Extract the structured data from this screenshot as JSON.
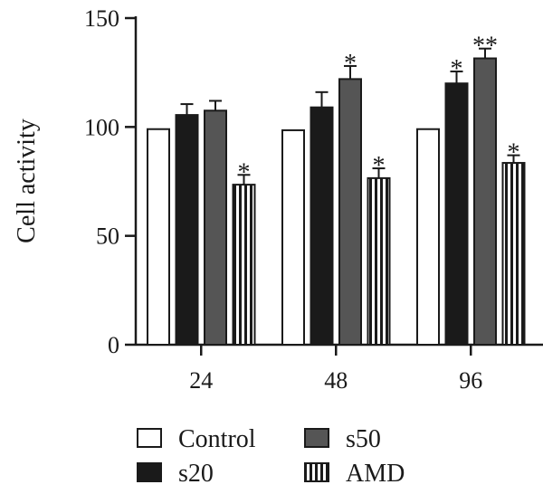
{
  "chart_data": {
    "type": "bar",
    "title": "",
    "xlabel": "",
    "ylabel": "Cell activity",
    "ylim": [
      0,
      150
    ],
    "yticks": [
      "0",
      "50",
      "100",
      "150"
    ],
    "categories": [
      "24",
      "48",
      "96"
    ],
    "series": [
      {
        "name": "Control",
        "values": [
          99,
          98.5,
          99
        ],
        "errors": [
          0,
          0,
          0
        ],
        "marks": [
          "",
          "",
          ""
        ],
        "fill": "white"
      },
      {
        "name": "s20",
        "values": [
          105.5,
          109,
          120
        ],
        "errors": [
          5,
          7,
          5.5
        ],
        "marks": [
          "",
          "",
          "*"
        ],
        "fill": "black"
      },
      {
        "name": "s50",
        "values": [
          107.5,
          122,
          131.5
        ],
        "errors": [
          4.5,
          6,
          4.5
        ],
        "marks": [
          "",
          "*",
          "**"
        ],
        "fill": "gray"
      },
      {
        "name": "AMD",
        "values": [
          73.5,
          76.5,
          83.5
        ],
        "errors": [
          4.5,
          4.5,
          3.5
        ],
        "marks": [
          "*",
          "*",
          "*"
        ],
        "fill": "stripes"
      }
    ],
    "grid": false,
    "legend_position": "bottom",
    "colors": {
      "black": "#1a1a1a",
      "gray": "#555555",
      "white": "#ffffff",
      "axis": "#1a1a1a"
    }
  }
}
